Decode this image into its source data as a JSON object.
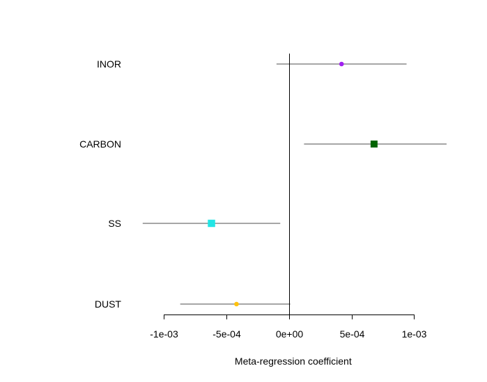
{
  "chart_data": {
    "type": "scatter",
    "subtype": "forest-plot-with-confidence-intervals",
    "title": "",
    "xlabel": "Meta-regression coefficient",
    "ylabel": "",
    "xlim": [
      -0.00113,
      0.00126
    ],
    "x_ticks": [
      -0.001,
      -0.0005,
      0,
      0.0005,
      0.001
    ],
    "x_tick_labels": [
      "-1e-03",
      "-5e-04",
      "0e+00",
      "5e-04",
      "1e-03"
    ],
    "reference_line_x": 0,
    "grid": false,
    "legend": "none",
    "categories": [
      "INOR",
      "CARBON",
      "SS",
      "DUST"
    ],
    "series": [
      {
        "label": "INOR",
        "estimate": 0.00042,
        "ci_lower": -0.0001,
        "ci_upper": 0.00094,
        "color": "#A020F0",
        "marker": "circle",
        "marker_scale": 0.55
      },
      {
        "label": "CARBON",
        "estimate": 0.00068,
        "ci_lower": 0.00012,
        "ci_upper": 0.00126,
        "color": "#006400",
        "marker": "square",
        "marker_scale": 1
      },
      {
        "label": "SS",
        "estimate": -0.00062,
        "ci_lower": -0.00117,
        "ci_upper": -7e-05,
        "color": "#22E5E5",
        "marker": "square",
        "marker_scale": 1.05
      },
      {
        "label": "DUST",
        "estimate": -0.00042,
        "ci_lower": -0.00087,
        "ci_upper": 1e-05,
        "color": "#FFC20E",
        "marker": "circle",
        "marker_scale": 0.55
      }
    ],
    "ci_color": "#A6A6A6"
  }
}
